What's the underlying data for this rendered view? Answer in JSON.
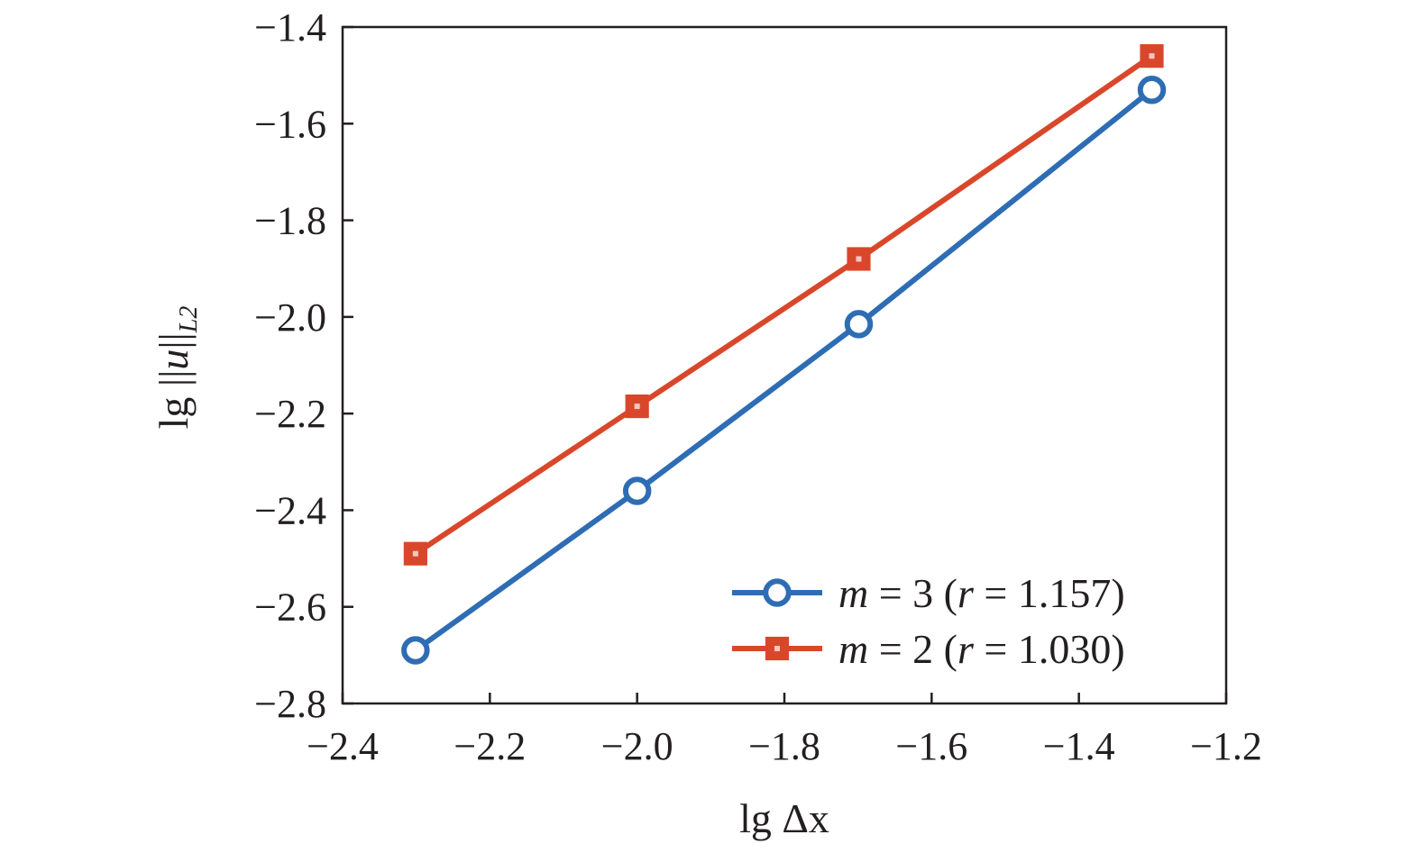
{
  "chart_data": {
    "type": "line",
    "title": "",
    "xlabel": "lg Δx",
    "ylabel": {
      "prefix": "lg ||",
      "var": "u",
      "suffix": "||",
      "sub": "L2"
    },
    "xlim": [
      -2.4,
      -1.2
    ],
    "ylim": [
      -2.8,
      -1.4
    ],
    "xticks": [
      -2.4,
      -2.2,
      -2.0,
      -1.8,
      -1.6,
      -1.4,
      -1.2
    ],
    "xtick_labels": [
      "−2.4",
      "−2.2",
      "−2.0",
      "−1.8",
      "−1.6",
      "−1.4",
      "−1.2"
    ],
    "yticks": [
      -1.4,
      -1.6,
      -1.8,
      -2.0,
      -2.2,
      -2.4,
      -2.6,
      -2.8
    ],
    "ytick_labels": [
      "−1.4",
      "−1.6",
      "−1.8",
      "−2.0",
      "−2.2",
      "−2.4",
      "−2.6",
      "−2.8"
    ],
    "grid": false,
    "legend_position": "bottom-right",
    "series": [
      {
        "legend": {
          "var": "m",
          "eq": " = 3 (",
          "rvar": "r",
          "rest": " = 1.157)"
        },
        "marker": "circle",
        "color": "#2e6db4",
        "x": [
          -2.301,
          -2.0,
          -1.699,
          -1.301
        ],
        "y": [
          -2.69,
          -2.36,
          -2.015,
          -1.53
        ]
      },
      {
        "legend": {
          "var": "m",
          "eq": " = 2 (",
          "rvar": "r",
          "rest": " = 1.030)"
        },
        "marker": "square",
        "color": "#d9472b",
        "x": [
          -2.301,
          -2.0,
          -1.699,
          -1.301
        ],
        "y": [
          -2.49,
          -2.185,
          -1.88,
          -1.46
        ]
      }
    ]
  }
}
